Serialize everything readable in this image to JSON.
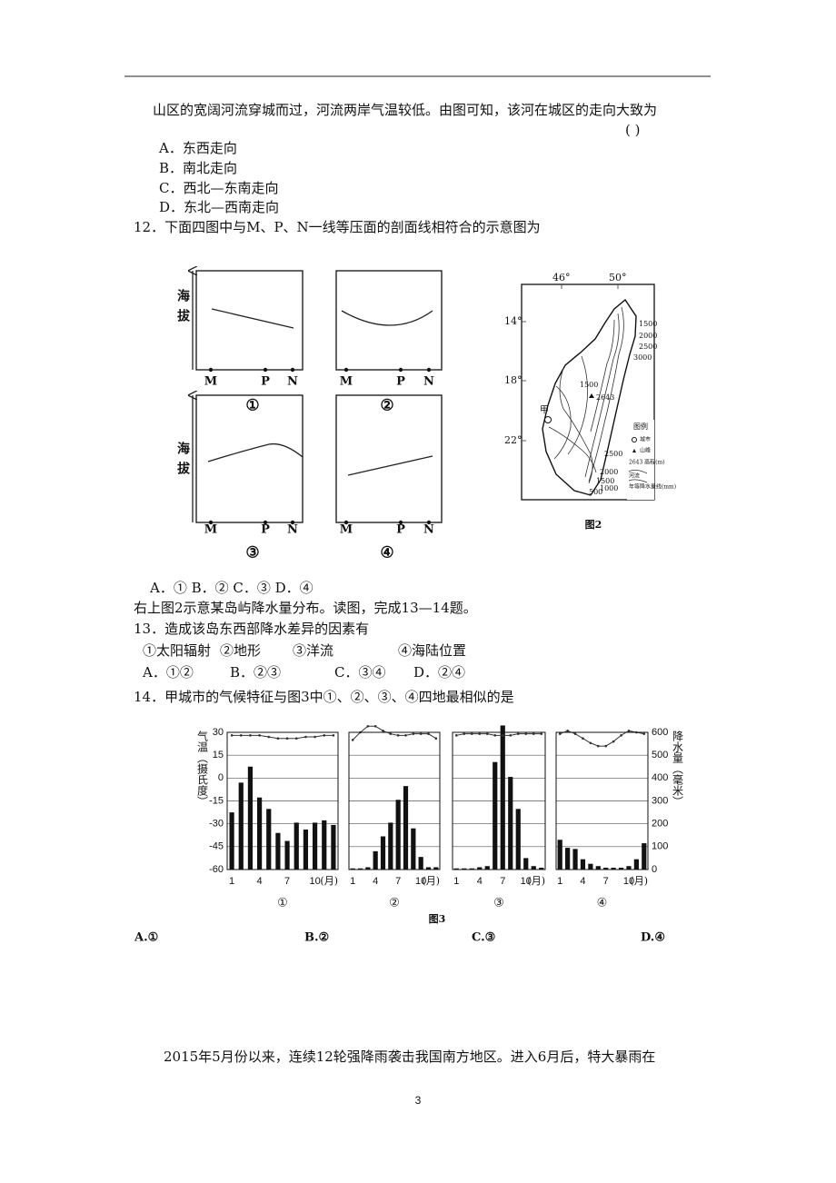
{
  "q11": {
    "stem": "山区的宽阔河流穿城而过，河流两岸气温较低。由图可知，该河在城区的走向大致为",
    "bracket": "(      )",
    "options": [
      "A．东西走向",
      "B．南北走向",
      "C．西北—东南走向",
      "D．东北—西南走向"
    ]
  },
  "q12": {
    "stem": "12．下面四图中与M、P、N一线等压面的剖面线相符合的示意图为",
    "y_label": "海拔",
    "points": [
      "M",
      "P",
      "N"
    ],
    "captions": [
      "①",
      "②",
      "③",
      "④"
    ],
    "options": "A．①  B．②  C．③  D．④"
  },
  "map": {
    "lon_labels": [
      "46°",
      "50°"
    ],
    "lat_labels": [
      "14°",
      "18°",
      "22°"
    ],
    "contour_labels_north": [
      "1500",
      "2000",
      "2500",
      "3000"
    ],
    "contour_labels_south": [
      "2500",
      "2000",
      "1500",
      "1000",
      "500"
    ],
    "peak_labels": [
      "1500",
      "2643"
    ],
    "city": "甲",
    "legend_title": "图例",
    "legend_items": [
      "城市",
      "山峰",
      "2643 高程(m)",
      "河流",
      "年等降水量线(mm)"
    ],
    "caption": "图2"
  },
  "intro": "右上图2示意某岛屿降水量分布。读图，完成13—14题。",
  "q13": {
    "stem": "13．造成该岛东西部降水差异的因素有",
    "factors": [
      "①太阳辐射",
      "②地形",
      "③洋流",
      "④海陆位置"
    ],
    "options": [
      "A．①②",
      "B．②③",
      "C．③④",
      "D．②④"
    ]
  },
  "q14": {
    "stem": "14．甲城市的气候特征与图3中①、②、③、④四地最相似的是",
    "figure": {
      "type": "bar-line",
      "y_label": "气温（摄氏度）",
      "y2_label": "降水量（毫米）",
      "ylim": [
        -60,
        30
      ],
      "yticks": [
        30,
        15,
        0,
        -15,
        -30,
        -45,
        -60
      ],
      "y2lim": [
        0,
        600
      ],
      "y2ticks": [
        600,
        500,
        400,
        300,
        200,
        100,
        0
      ],
      "xticks": [
        1,
        4,
        7,
        10
      ],
      "x_unit": "(月)",
      "bar_color": "#111111",
      "line_color": "#333333",
      "grid": true,
      "charts": [
        {
          "caption": "①",
          "temperature": [
            28,
            28,
            28,
            28,
            27,
            26,
            26,
            26,
            27,
            27,
            28,
            28
          ],
          "precipitation": [
            250,
            380,
            450,
            315,
            265,
            160,
            125,
            205,
            175,
            205,
            215,
            195
          ]
        },
        {
          "caption": "②",
          "temperature": [
            25,
            30,
            34,
            34,
            31,
            29,
            28,
            28,
            29,
            29,
            29,
            26
          ],
          "precipitation": [
            5,
            5,
            10,
            80,
            145,
            205,
            305,
            365,
            180,
            55,
            10,
            10
          ]
        },
        {
          "caption": "③",
          "temperature": [
            28,
            29,
            29,
            29,
            29,
            28,
            28,
            28,
            29,
            29,
            29,
            29
          ],
          "precipitation": [
            5,
            5,
            5,
            10,
            15,
            470,
            630,
            405,
            265,
            50,
            15,
            8
          ]
        },
        {
          "caption": "④",
          "temperature": [
            29,
            31,
            29,
            26,
            23,
            21,
            21,
            24,
            28,
            31,
            30,
            29
          ],
          "precipitation": [
            130,
            95,
            90,
            45,
            25,
            15,
            8,
            8,
            8,
            15,
            45,
            115
          ]
        }
      ],
      "caption": "图3"
    },
    "options": [
      "A.①",
      "B.②",
      "C.③",
      "D.④"
    ]
  },
  "paragraph": "2015年5月份以来，连续12轮强降雨袭击我国南方地区。进入6月后，特大暴雨在",
  "page_number": "3"
}
